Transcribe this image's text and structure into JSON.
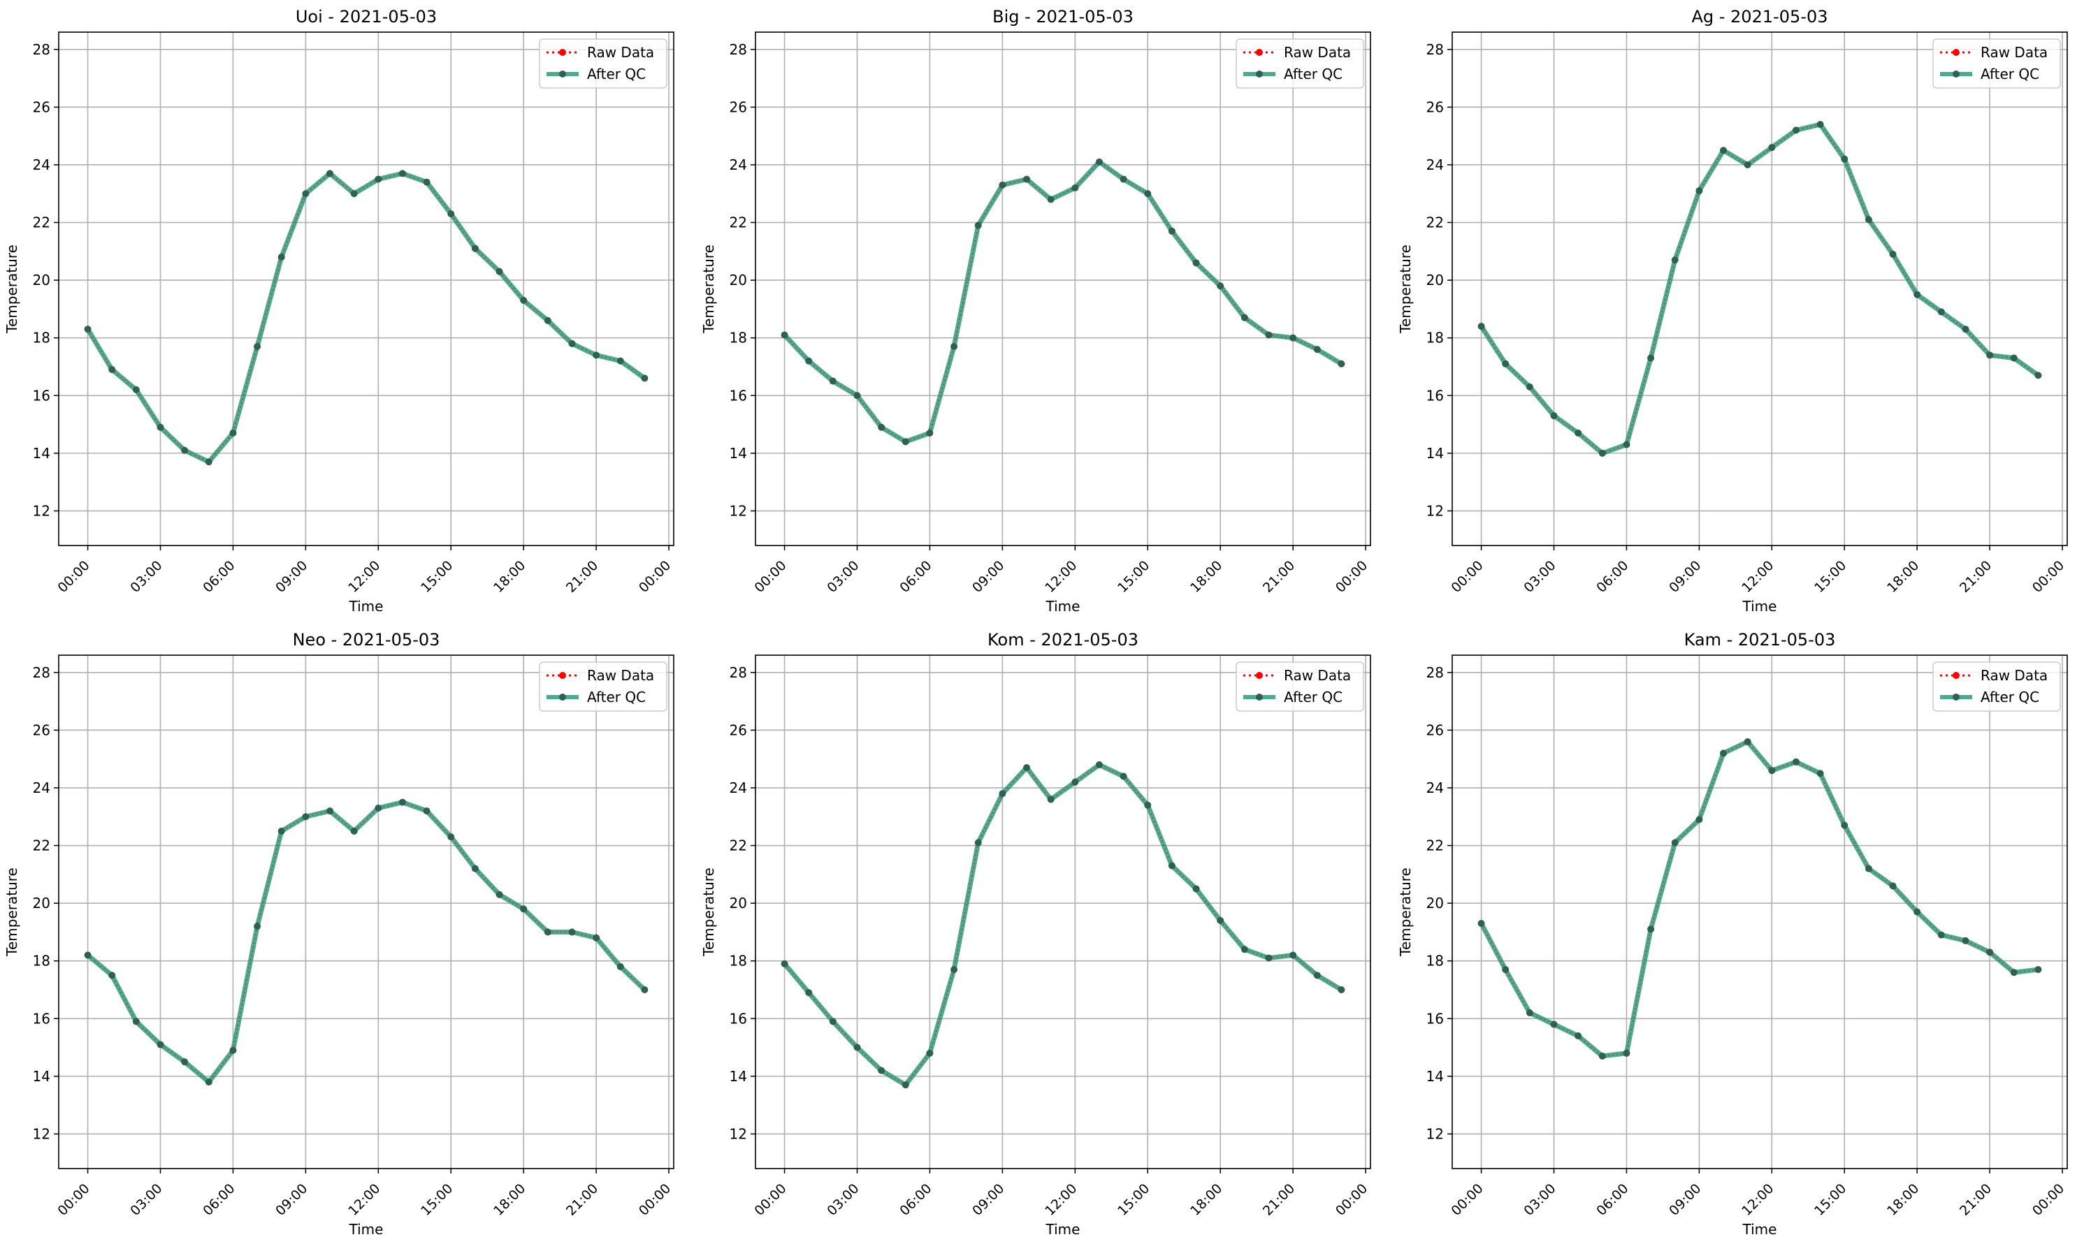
{
  "legend": {
    "raw_label": "Raw Data",
    "qc_label": "After QC"
  },
  "colors": {
    "raw": "#ff0000",
    "qc": "#2a9d78",
    "grid": "#b0b0b0",
    "marker": "#2f5f55"
  },
  "chart_data": [
    {
      "type": "line",
      "title": "Uoi - 2021-05-03",
      "xlabel": "Time",
      "ylabel": "Temperature",
      "xticks": [
        "00:00",
        "03:00",
        "06:00",
        "09:00",
        "12:00",
        "15:00",
        "18:00",
        "21:00",
        "00:00"
      ],
      "xlim": [
        -1.2,
        24.2
      ],
      "ylim": [
        10.8,
        28.6
      ],
      "yticks": [
        12,
        14,
        16,
        18,
        20,
        22,
        24,
        26,
        28
      ],
      "grid": true,
      "legend_position": "top-right",
      "x": [
        0,
        1,
        2,
        3,
        4,
        5,
        6,
        7,
        8,
        9,
        10,
        11,
        12,
        13,
        14,
        15,
        16,
        17,
        18,
        19,
        20,
        21,
        22,
        23
      ],
      "series": [
        {
          "name": "Raw Data",
          "values": [
            18.3,
            16.9,
            16.2,
            14.9,
            14.1,
            13.7,
            14.7,
            17.7,
            20.8,
            23.0,
            23.7,
            23.0,
            23.5,
            23.7,
            23.4,
            22.3,
            21.1,
            20.3,
            19.3,
            18.6,
            17.8,
            17.4,
            17.2,
            16.6
          ]
        },
        {
          "name": "After QC",
          "values": [
            18.3,
            16.9,
            16.2,
            14.9,
            14.1,
            13.7,
            14.7,
            17.7,
            20.8,
            23.0,
            23.7,
            23.0,
            23.5,
            23.7,
            23.4,
            22.3,
            21.1,
            20.3,
            19.3,
            18.6,
            17.8,
            17.4,
            17.2,
            16.6
          ]
        }
      ]
    },
    {
      "type": "line",
      "title": "Big - 2021-05-03",
      "xlabel": "Time",
      "ylabel": "Temperature",
      "xticks": [
        "00:00",
        "03:00",
        "06:00",
        "09:00",
        "12:00",
        "15:00",
        "18:00",
        "21:00",
        "00:00"
      ],
      "xlim": [
        -1.2,
        24.2
      ],
      "ylim": [
        10.8,
        28.6
      ],
      "yticks": [
        12,
        14,
        16,
        18,
        20,
        22,
        24,
        26,
        28
      ],
      "grid": true,
      "legend_position": "top-right",
      "x": [
        0,
        1,
        2,
        3,
        4,
        5,
        6,
        7,
        8,
        9,
        10,
        11,
        12,
        13,
        14,
        15,
        16,
        17,
        18,
        19,
        20,
        21,
        22,
        23
      ],
      "series": [
        {
          "name": "Raw Data",
          "values": [
            18.1,
            17.2,
            16.5,
            16.0,
            14.9,
            14.4,
            14.7,
            17.7,
            21.9,
            23.3,
            23.5,
            22.8,
            23.2,
            24.1,
            23.5,
            23.0,
            21.7,
            20.6,
            19.8,
            18.7,
            18.1,
            18.0,
            17.6,
            17.1
          ]
        },
        {
          "name": "After QC",
          "values": [
            18.1,
            17.2,
            16.5,
            16.0,
            14.9,
            14.4,
            14.7,
            17.7,
            21.9,
            23.3,
            23.5,
            22.8,
            23.2,
            24.1,
            23.5,
            23.0,
            21.7,
            20.6,
            19.8,
            18.7,
            18.1,
            18.0,
            17.6,
            17.1
          ]
        }
      ]
    },
    {
      "type": "line",
      "title": "Ag - 2021-05-03",
      "xlabel": "Time",
      "ylabel": "Temperature",
      "xticks": [
        "00:00",
        "03:00",
        "06:00",
        "09:00",
        "12:00",
        "15:00",
        "18:00",
        "21:00",
        "00:00"
      ],
      "xlim": [
        -1.2,
        24.2
      ],
      "ylim": [
        10.8,
        28.6
      ],
      "yticks": [
        12,
        14,
        16,
        18,
        20,
        22,
        24,
        26,
        28
      ],
      "grid": true,
      "legend_position": "top-right",
      "x": [
        0,
        1,
        2,
        3,
        4,
        5,
        6,
        7,
        8,
        9,
        10,
        11,
        12,
        13,
        14,
        15,
        16,
        17,
        18,
        19,
        20,
        21,
        22,
        23
      ],
      "series": [
        {
          "name": "Raw Data",
          "values": [
            18.4,
            17.1,
            16.3,
            15.3,
            14.7,
            14.0,
            14.3,
            17.3,
            20.7,
            23.1,
            24.5,
            24.0,
            24.6,
            25.2,
            25.4,
            24.2,
            22.1,
            20.9,
            19.5,
            18.9,
            18.3,
            17.4,
            17.3,
            16.7
          ]
        },
        {
          "name": "After QC",
          "values": [
            18.4,
            17.1,
            16.3,
            15.3,
            14.7,
            14.0,
            14.3,
            17.3,
            20.7,
            23.1,
            24.5,
            24.0,
            24.6,
            25.2,
            25.4,
            24.2,
            22.1,
            20.9,
            19.5,
            18.9,
            18.3,
            17.4,
            17.3,
            16.7
          ]
        }
      ]
    },
    {
      "type": "line",
      "title": "Neo - 2021-05-03",
      "xlabel": "Time",
      "ylabel": "Temperature",
      "xticks": [
        "00:00",
        "03:00",
        "06:00",
        "09:00",
        "12:00",
        "15:00",
        "18:00",
        "21:00",
        "00:00"
      ],
      "xlim": [
        -1.2,
        24.2
      ],
      "ylim": [
        10.8,
        28.6
      ],
      "yticks": [
        12,
        14,
        16,
        18,
        20,
        22,
        24,
        26,
        28
      ],
      "grid": true,
      "legend_position": "top-right",
      "x": [
        0,
        1,
        2,
        3,
        4,
        5,
        6,
        7,
        8,
        9,
        10,
        11,
        12,
        13,
        14,
        15,
        16,
        17,
        18,
        19,
        20,
        21,
        22,
        23
      ],
      "series": [
        {
          "name": "Raw Data",
          "values": [
            18.2,
            17.5,
            15.9,
            15.1,
            14.5,
            13.8,
            14.9,
            19.2,
            22.5,
            23.0,
            23.2,
            22.5,
            23.3,
            23.5,
            23.2,
            22.3,
            21.2,
            20.3,
            19.8,
            19.0,
            19.0,
            18.8,
            17.8,
            17.0
          ]
        },
        {
          "name": "After QC",
          "values": [
            18.2,
            17.5,
            15.9,
            15.1,
            14.5,
            13.8,
            14.9,
            19.2,
            22.5,
            23.0,
            23.2,
            22.5,
            23.3,
            23.5,
            23.2,
            22.3,
            21.2,
            20.3,
            19.8,
            19.0,
            19.0,
            18.8,
            17.8,
            17.0
          ]
        }
      ]
    },
    {
      "type": "line",
      "title": "Kom - 2021-05-03",
      "xlabel": "Time",
      "ylabel": "Temperature",
      "xticks": [
        "00:00",
        "03:00",
        "06:00",
        "09:00",
        "12:00",
        "15:00",
        "18:00",
        "21:00",
        "00:00"
      ],
      "xlim": [
        -1.2,
        24.2
      ],
      "ylim": [
        10.8,
        28.6
      ],
      "yticks": [
        12,
        14,
        16,
        18,
        20,
        22,
        24,
        26,
        28
      ],
      "grid": true,
      "legend_position": "top-right",
      "x": [
        0,
        1,
        2,
        3,
        4,
        5,
        6,
        7,
        8,
        9,
        10,
        11,
        12,
        13,
        14,
        15,
        16,
        17,
        18,
        19,
        20,
        21,
        22,
        23
      ],
      "series": [
        {
          "name": "Raw Data",
          "values": [
            17.9,
            16.9,
            15.9,
            15.0,
            14.2,
            13.7,
            14.8,
            17.7,
            22.1,
            23.8,
            24.7,
            23.6,
            24.2,
            24.8,
            24.4,
            23.4,
            21.3,
            20.5,
            19.4,
            18.4,
            18.1,
            18.2,
            17.5,
            17.0
          ]
        },
        {
          "name": "After QC",
          "values": [
            17.9,
            16.9,
            15.9,
            15.0,
            14.2,
            13.7,
            14.8,
            17.7,
            22.1,
            23.8,
            24.7,
            23.6,
            24.2,
            24.8,
            24.4,
            23.4,
            21.3,
            20.5,
            19.4,
            18.4,
            18.1,
            18.2,
            17.5,
            17.0
          ]
        }
      ]
    },
    {
      "type": "line",
      "title": "Kam - 2021-05-03",
      "xlabel": "Time",
      "ylabel": "Temperature",
      "xticks": [
        "00:00",
        "03:00",
        "06:00",
        "09:00",
        "12:00",
        "15:00",
        "18:00",
        "21:00",
        "00:00"
      ],
      "xlim": [
        -1.2,
        24.2
      ],
      "ylim": [
        10.8,
        28.6
      ],
      "yticks": [
        12,
        14,
        16,
        18,
        20,
        22,
        24,
        26,
        28
      ],
      "grid": true,
      "legend_position": "top-right",
      "x": [
        0,
        1,
        2,
        3,
        4,
        5,
        6,
        7,
        8,
        9,
        10,
        11,
        12,
        13,
        14,
        15,
        16,
        17,
        18,
        19,
        20,
        21,
        22,
        23
      ],
      "series": [
        {
          "name": "Raw Data",
          "values": [
            19.3,
            17.7,
            16.2,
            15.8,
            15.4,
            14.7,
            14.8,
            19.1,
            22.1,
            22.9,
            25.2,
            25.6,
            24.6,
            24.9,
            24.5,
            22.7,
            21.2,
            20.6,
            19.7,
            18.9,
            18.7,
            18.3,
            17.6,
            17.7
          ]
        },
        {
          "name": "After QC",
          "values": [
            19.3,
            17.7,
            16.2,
            15.8,
            15.4,
            14.7,
            14.8,
            19.1,
            22.1,
            22.9,
            25.2,
            25.6,
            24.6,
            24.9,
            24.5,
            22.7,
            21.2,
            20.6,
            19.7,
            18.9,
            18.7,
            18.3,
            17.6,
            17.7
          ]
        }
      ]
    }
  ]
}
